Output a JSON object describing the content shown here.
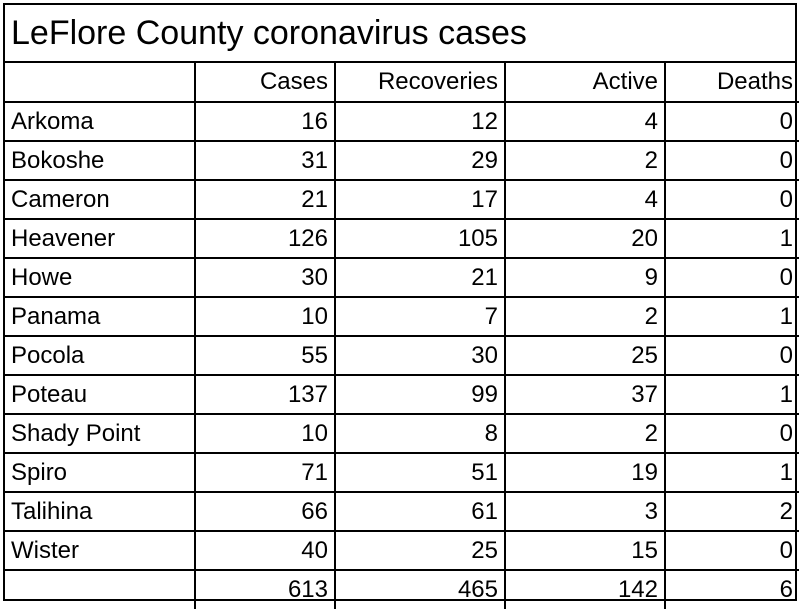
{
  "title": "LeFlore County coronavirus cases",
  "columns": [
    "",
    "Cases",
    "Recoveries",
    "Active",
    "Deaths"
  ],
  "rows": [
    {
      "town": "Arkoma",
      "cases": "16",
      "recoveries": "12",
      "active": "4",
      "deaths": "0"
    },
    {
      "town": "Bokoshe",
      "cases": "31",
      "recoveries": "29",
      "active": "2",
      "deaths": "0"
    },
    {
      "town": "Cameron",
      "cases": "21",
      "recoveries": "17",
      "active": "4",
      "deaths": "0"
    },
    {
      "town": "Heavener",
      "cases": "126",
      "recoveries": "105",
      "active": "20",
      "deaths": "1"
    },
    {
      "town": "Howe",
      "cases": "30",
      "recoveries": "21",
      "active": "9",
      "deaths": "0"
    },
    {
      "town": "Panama",
      "cases": "10",
      "recoveries": "7",
      "active": "2",
      "deaths": "1"
    },
    {
      "town": "Pocola",
      "cases": "55",
      "recoveries": "30",
      "active": "25",
      "deaths": "0"
    },
    {
      "town": "Poteau",
      "cases": "137",
      "recoveries": "99",
      "active": "37",
      "deaths": "1"
    },
    {
      "town": "Shady Point",
      "cases": "10",
      "recoveries": "8",
      "active": "2",
      "deaths": "0"
    },
    {
      "town": "Spiro",
      "cases": "71",
      "recoveries": "51",
      "active": "19",
      "deaths": "1"
    },
    {
      "town": "Talihina",
      "cases": "66",
      "recoveries": "61",
      "active": "3",
      "deaths": "2"
    },
    {
      "town": "Wister",
      "cases": "40",
      "recoveries": "25",
      "active": "15",
      "deaths": "0"
    }
  ],
  "totals": {
    "town": "",
    "cases": "613",
    "recoveries": "465",
    "active": "142",
    "deaths": "6"
  }
}
